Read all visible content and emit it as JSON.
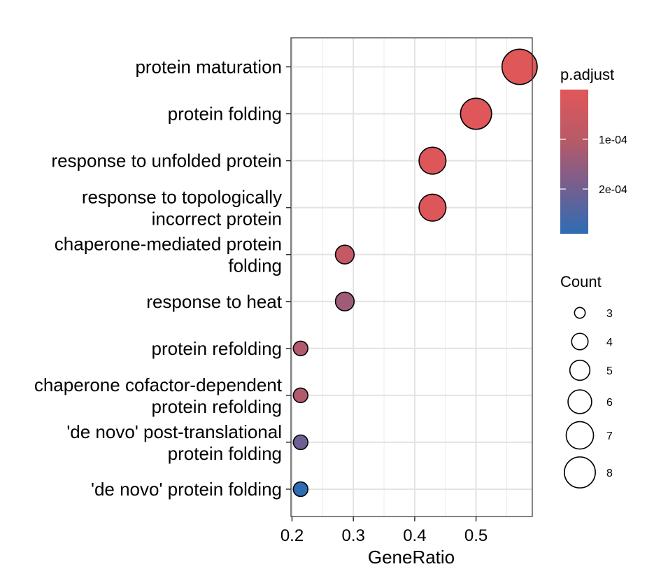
{
  "chart_data": {
    "type": "scatter",
    "xlabel": "GeneRatio",
    "ylabel": "",
    "xlim": [
      0.2,
      0.6
    ],
    "x_ticks": [
      0.2,
      0.3,
      0.4,
      0.5
    ],
    "x_tick_labels": [
      "0.2",
      "0.3",
      "0.4",
      "0.5"
    ],
    "grid": true,
    "categories": [
      [
        "protein maturation"
      ],
      [
        "protein folding"
      ],
      [
        "response to unfolded protein"
      ],
      [
        "response to topologically",
        "incorrect protein"
      ],
      [
        "chaperone-mediated protein",
        "folding"
      ],
      [
        "response to heat"
      ],
      [
        "protein refolding"
      ],
      [
        "chaperone cofactor-dependent",
        "protein refolding"
      ],
      [
        "'de novo' post-translational",
        "protein folding"
      ],
      [
        "'de novo' protein folding"
      ]
    ],
    "points": [
      {
        "x": 0.571,
        "count": 8,
        "p_adjust": 2e-06
      },
      {
        "x": 0.5,
        "count": 7,
        "p_adjust": 6e-06
      },
      {
        "x": 0.429,
        "count": 6,
        "p_adjust": 1e-05
      },
      {
        "x": 0.429,
        "count": 6,
        "p_adjust": 1e-05
      },
      {
        "x": 0.286,
        "count": 4,
        "p_adjust": 7e-05
      },
      {
        "x": 0.286,
        "count": 4,
        "p_adjust": 0.000135
      },
      {
        "x": 0.214,
        "count": 3,
        "p_adjust": 0.00011
      },
      {
        "x": 0.214,
        "count": 3,
        "p_adjust": 0.00011
      },
      {
        "x": 0.214,
        "count": 3,
        "p_adjust": 0.000205
      },
      {
        "x": 0.214,
        "count": 3,
        "p_adjust": 0.00029
      }
    ],
    "color_legend": {
      "title": "p.adjust",
      "ticks": [
        0.0001,
        0.0002
      ],
      "tick_labels": [
        "1e-04",
        "2e-04"
      ],
      "range": [
        0.0,
        0.00029
      ],
      "low_color": "#E15759",
      "high_color": "#2E6DB4",
      "placement": "right"
    },
    "size_legend": {
      "title": "Count",
      "values": [
        3,
        4,
        5,
        6,
        7,
        8
      ],
      "labels": [
        "3",
        "4",
        "5",
        "6",
        "7",
        "8"
      ],
      "placement": "right"
    }
  }
}
